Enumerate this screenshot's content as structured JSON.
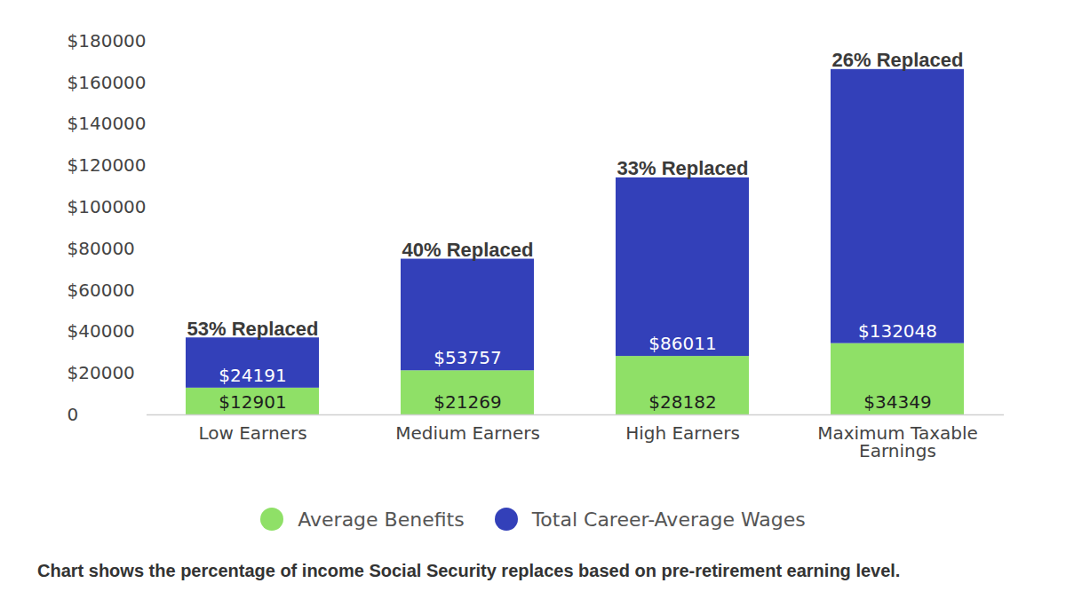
{
  "chart_data": {
    "type": "bar",
    "stacked": true,
    "categories": [
      "Low Earners",
      "Medium Earners",
      "High Earners",
      "Maximum Taxable Earnings"
    ],
    "series": [
      {
        "name": "Average Benefits",
        "color": "#8fe067",
        "values": [
          12901,
          21269,
          28182,
          34349
        ],
        "value_labels": [
          "$12901",
          "$21269",
          "$28182",
          "$34349"
        ]
      },
      {
        "name": "Total Career-Average Wages",
        "color": "#3340b9",
        "values": [
          24191,
          53757,
          86011,
          132048
        ],
        "value_labels": [
          "$24191",
          "$53757",
          "$86011",
          "$132048"
        ]
      }
    ],
    "annotations": [
      "53% Replaced",
      "40% Replaced",
      "33% Replaced",
      "26% Replaced"
    ],
    "ylim": [
      0,
      180000
    ],
    "yticks": [
      0,
      {
        "value": 20000,
        "label": "$20000"
      },
      {
        "value": 40000,
        "label": "$40000"
      },
      {
        "value": 60000,
        "label": "$60000"
      },
      {
        "value": 80000,
        "label": "$80000"
      },
      {
        "value": 100000,
        "label": "$100000"
      },
      {
        "value": 120000,
        "label": "$120000"
      },
      {
        "value": 140000,
        "label": "$140000"
      },
      {
        "value": 160000,
        "label": "$160000"
      },
      {
        "value": 180000,
        "label": "$180000"
      }
    ],
    "grid": false,
    "legend": "bottom",
    "data_labels": true,
    "caption": "Chart shows the percentage of income Social Security replaces based on pre-retirement earning level."
  }
}
